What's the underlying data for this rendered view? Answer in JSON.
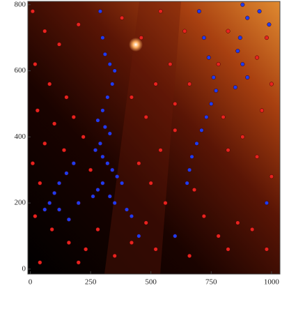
{
  "chart_data": {
    "type": "scatter",
    "xlim": [
      -10,
      1035
    ],
    "ylim": [
      -15,
      810
    ],
    "xticks": [
      0,
      250,
      500,
      750,
      1000
    ],
    "yticks": [
      0,
      200,
      400,
      600,
      800
    ],
    "series": [
      {
        "color": "#e8231f",
        "x": [
          10,
          60,
          120,
          200,
          20,
          80,
          150,
          30,
          100,
          180,
          220,
          60,
          10,
          140,
          40,
          20,
          90,
          160,
          40,
          230,
          280,
          350,
          420,
          480,
          520,
          560,
          500,
          450,
          540,
          600,
          480,
          420,
          520,
          580,
          460,
          380,
          540,
          640,
          660,
          600,
          680,
          720,
          780,
          820,
          860,
          920,
          980,
          1000,
          940,
          880,
          820,
          800,
          960,
          1000,
          940,
          980,
          820,
          780,
          660,
          250,
          200
        ],
        "values": [
          780,
          720,
          680,
          740,
          620,
          560,
          520,
          480,
          440,
          460,
          400,
          380,
          320,
          360,
          260,
          160,
          120,
          80,
          20,
          60,
          120,
          40,
          80,
          140,
          60,
          200,
          260,
          320,
          360,
          420,
          460,
          520,
          560,
          620,
          700,
          760,
          780,
          720,
          560,
          500,
          240,
          160,
          100,
          60,
          140,
          120,
          60,
          280,
          340,
          400,
          360,
          460,
          480,
          560,
          640,
          700,
          720,
          620,
          40,
          300,
          20
        ]
      },
      {
        "color": "#1e3cf0",
        "x": [
          290,
          300,
          310,
          330,
          350,
          340,
          320,
          300,
          280,
          310,
          330,
          290,
          270,
          300,
          320,
          340,
          360,
          380,
          300,
          280,
          260,
          330,
          350,
          400,
          420,
          180,
          150,
          120,
          100,
          80,
          60,
          120,
          160,
          200,
          700,
          720,
          740,
          760,
          770,
          750,
          730,
          710,
          690,
          670,
          660,
          650,
          880,
          900,
          870,
          860,
          880,
          900,
          850,
          950,
          990,
          600,
          450,
          980
        ],
        "values": [
          780,
          700,
          650,
          620,
          600,
          560,
          520,
          480,
          450,
          430,
          410,
          380,
          360,
          340,
          320,
          300,
          280,
          260,
          260,
          240,
          220,
          220,
          200,
          180,
          160,
          320,
          290,
          260,
          230,
          200,
          180,
          180,
          150,
          200,
          780,
          700,
          640,
          580,
          540,
          500,
          460,
          420,
          380,
          340,
          300,
          260,
          800,
          760,
          700,
          660,
          620,
          580,
          550,
          780,
          740,
          100,
          100,
          200
        ]
      }
    ]
  }
}
